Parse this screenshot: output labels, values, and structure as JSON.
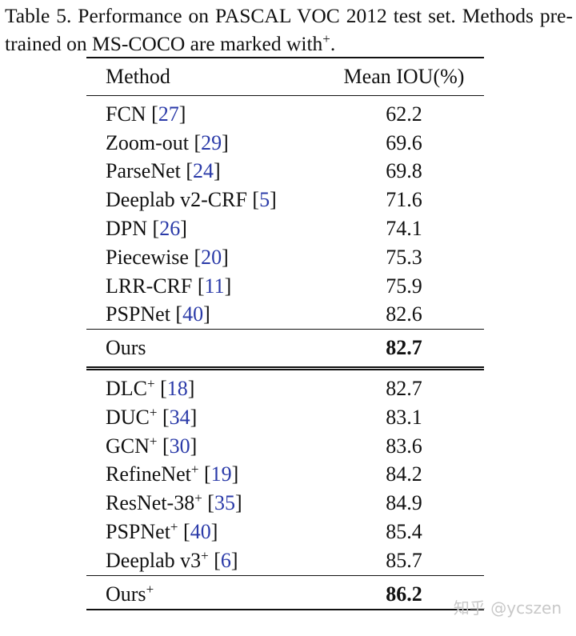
{
  "caption": {
    "text": "Table 5. Performance on PASCAL VOC 2012 test set. Methods pre-trained on MS-COCO are marked with",
    "sup": "+",
    "end": "."
  },
  "table": {
    "headers": [
      "Method",
      "Mean IOU(%)"
    ],
    "sections": [
      {
        "rows": [
          {
            "method": "FCN",
            "ref": "[27]",
            "value": 62.2
          },
          {
            "method": "Zoom-out",
            "ref": "[29]",
            "value": 69.6
          },
          {
            "method": "ParseNet",
            "ref": "[24]",
            "value": 69.8
          },
          {
            "method": "Deeplab v2-CRF",
            "ref": "[5]",
            "value": 71.6
          },
          {
            "method": "DPN",
            "ref": "[26]",
            "value": 74.1
          },
          {
            "method": "Piecewise",
            "ref": "[20]",
            "value": 75.3
          },
          {
            "method": "LRR-CRF",
            "ref": "[11]",
            "value": 75.9
          },
          {
            "method": "PSPNet",
            "ref": "[40]",
            "value": 82.6
          }
        ]
      },
      {
        "rows": [
          {
            "method": "Ours",
            "value": 82.7,
            "bold": true
          }
        ]
      },
      {
        "rows": [
          {
            "method": "DLC",
            "sup": "+",
            "ref": "[18]",
            "value": 82.7
          },
          {
            "method": "DUC",
            "sup": "+",
            "ref": "[34]",
            "value": 83.1
          },
          {
            "method": "GCN",
            "sup": "+",
            "ref": "[30]",
            "value": 83.6
          },
          {
            "method": "RefineNet",
            "sup": "+",
            "ref": "[19]",
            "value": 84.2
          },
          {
            "method": "ResNet-38",
            "sup": "+",
            "ref": "[35]",
            "value": 84.9
          },
          {
            "method": "PSPNet",
            "sup": "+",
            "ref": "[40]",
            "value": 85.4
          },
          {
            "method": "Deeplab v3",
            "sup": "+",
            "ref": "[6]",
            "value": 85.7
          }
        ]
      },
      {
        "rows": [
          {
            "method": "Ours",
            "sup": "+",
            "value": 86.2,
            "bold": true
          }
        ]
      }
    ]
  },
  "watermark": "知乎 @ycszen"
}
